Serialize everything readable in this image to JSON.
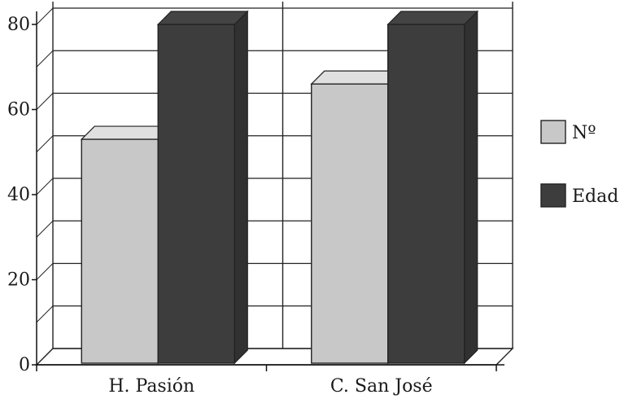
{
  "chart_data": {
    "type": "bar",
    "categories": [
      "H. Pasión",
      "C. San José"
    ],
    "series": [
      {
        "name": "Nº",
        "values": [
          53,
          66
        ]
      },
      {
        "name": "Edad",
        "values": [
          80,
          80
        ]
      }
    ],
    "title": "",
    "xlabel": "",
    "ylabel": "",
    "ylim": [
      0,
      80
    ],
    "yticks": [
      "0",
      "20",
      "40",
      "60",
      "80"
    ],
    "grid": true,
    "legend_position": "right",
    "three_d": true,
    "colors": {
      "Nº": "#c8c8c8",
      "Edad": "#3d3d3d"
    }
  }
}
